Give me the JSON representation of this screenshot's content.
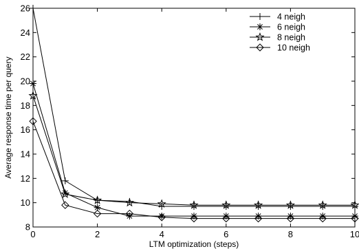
{
  "chart_data": {
    "type": "line",
    "title": "",
    "xlabel": "LTM optimization (steps)",
    "ylabel": "Average response time per query",
    "xlim": [
      0,
      10
    ],
    "ylim": [
      8,
      26
    ],
    "xticks": [
      0,
      2,
      4,
      6,
      8,
      10
    ],
    "yticks": [
      8,
      10,
      12,
      14,
      16,
      18,
      20,
      22,
      24,
      26
    ],
    "grid": false,
    "legend_position": "top-right",
    "x": [
      0,
      1,
      2,
      3,
      4,
      5,
      6,
      7,
      8,
      9,
      10
    ],
    "series": [
      {
        "name": "4 neigh",
        "marker": "plus",
        "values": [
          26.0,
          11.8,
          10.2,
          10.1,
          9.7,
          9.7,
          9.7,
          9.7,
          9.7,
          9.7,
          9.7
        ]
      },
      {
        "name": "6 neigh",
        "marker": "asterisk",
        "values": [
          19.8,
          10.8,
          9.6,
          8.9,
          8.9,
          8.9,
          8.9,
          8.9,
          8.9,
          8.9,
          8.9
        ]
      },
      {
        "name": "8 neigh",
        "marker": "star",
        "values": [
          18.8,
          10.7,
          10.2,
          10.0,
          9.9,
          9.8,
          9.8,
          9.8,
          9.8,
          9.8,
          9.8
        ]
      },
      {
        "name": "10 neigh",
        "marker": "diamond",
        "values": [
          16.7,
          9.8,
          9.1,
          9.1,
          8.8,
          8.7,
          8.7,
          8.7,
          8.7,
          8.7,
          8.7
        ]
      }
    ]
  }
}
